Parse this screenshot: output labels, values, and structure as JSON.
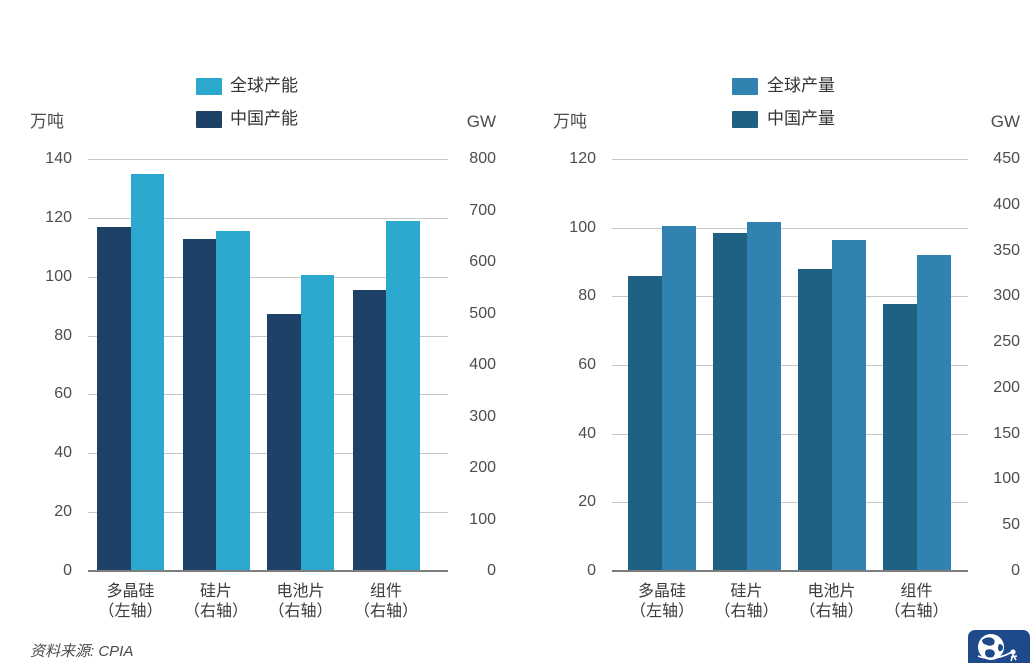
{
  "source_note": "资料来源: CPIA",
  "logo": {
    "bg": "#1e4a8c",
    "label": "globe-logo"
  },
  "chart_data": [
    {
      "type": "bar",
      "title": "",
      "legend": [
        {
          "key": "global",
          "label": "全球产能",
          "color": "#2ba8cd"
        },
        {
          "key": "china",
          "label": "中国产能",
          "color": "#1d4167"
        }
      ],
      "left_axis": {
        "unit": "万吨",
        "max": 140,
        "ticks": [
          140,
          120,
          100,
          80,
          60,
          40,
          20,
          0
        ]
      },
      "right_axis": {
        "unit": "GW",
        "max": 800,
        "ticks": [
          800,
          700,
          600,
          500,
          400,
          300,
          200,
          100,
          0
        ]
      },
      "categories": [
        {
          "key": "polysilicon",
          "name": "多晶硅",
          "axis_note": "（左轴）",
          "axis": "left"
        },
        {
          "key": "wafer",
          "name": "硅片",
          "axis_note": "（右轴）",
          "axis": "right"
        },
        {
          "key": "cell",
          "name": "电池片",
          "axis_note": "（右轴）",
          "axis": "right"
        },
        {
          "key": "module",
          "name": "组件",
          "axis_note": "（右轴）",
          "axis": "right"
        }
      ],
      "series": [
        {
          "key": "china",
          "name": "中国产能",
          "color": "#1d4167",
          "values": [
            117,
            645,
            500,
            545
          ]
        },
        {
          "key": "global",
          "name": "全球产能",
          "color": "#2ba8cd",
          "values": [
            135,
            660,
            575,
            680
          ]
        }
      ],
      "grid": true,
      "legend_position": "top"
    },
    {
      "type": "bar",
      "title": "",
      "legend": [
        {
          "key": "global",
          "label": "全球产量",
          "color": "#3083b1"
        },
        {
          "key": "china",
          "label": "中国产量",
          "color": "#1f6182"
        }
      ],
      "left_axis": {
        "unit": "万吨",
        "max": 120,
        "ticks": [
          120,
          100,
          80,
          60,
          40,
          20,
          0
        ]
      },
      "right_axis": {
        "unit": "GW",
        "max": 450,
        "ticks": [
          450,
          400,
          350,
          300,
          250,
          200,
          150,
          100,
          50,
          0
        ]
      },
      "categories": [
        {
          "key": "polysilicon",
          "name": "多晶硅",
          "axis_note": "（左轴）",
          "axis": "left"
        },
        {
          "key": "wafer",
          "name": "硅片",
          "axis_note": "（右轴）",
          "axis": "right"
        },
        {
          "key": "cell",
          "name": "电池片",
          "axis_note": "（右轴）",
          "axis": "right"
        },
        {
          "key": "module",
          "name": "组件",
          "axis_note": "（右轴）",
          "axis": "right"
        }
      ],
      "series": [
        {
          "key": "china",
          "name": "中国产量",
          "color": "#1f6182",
          "values": [
            86,
            369,
            330,
            292
          ]
        },
        {
          "key": "global",
          "name": "全球产量",
          "color": "#3083b1",
          "values": [
            100.5,
            381,
            362,
            345
          ]
        }
      ],
      "grid": true,
      "legend_position": "top"
    }
  ]
}
